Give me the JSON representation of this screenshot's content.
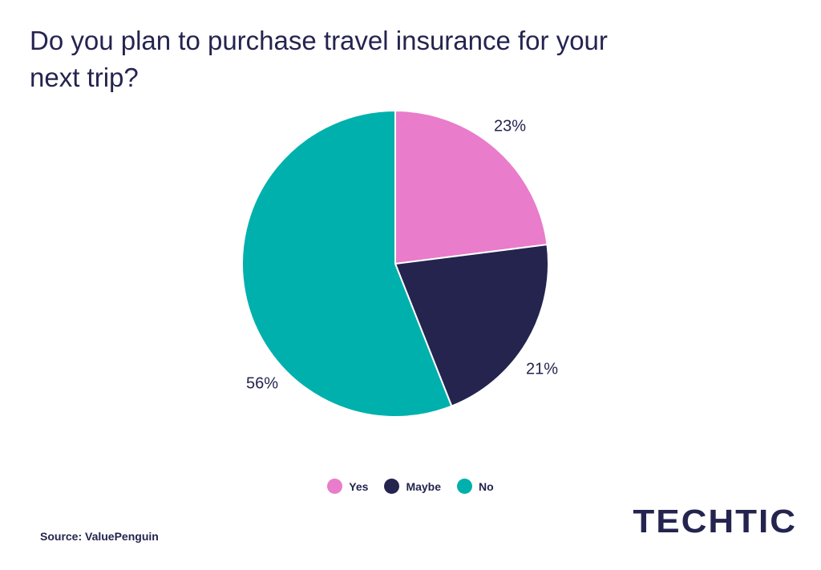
{
  "colors": {
    "yes": "#e97ccb",
    "maybe": "#24244f",
    "no": "#00b0ac"
  },
  "chart_data": {
    "type": "pie",
    "title": "Do you plan to purchase travel insurance for your next trip?",
    "categories": [
      "Yes",
      "Maybe",
      "No"
    ],
    "values": [
      23,
      21,
      56
    ],
    "labels": [
      "23%",
      "21%",
      "56%"
    ],
    "legend_placement": "bottom-center"
  },
  "source": "Source: ValuePenguin",
  "logo_text": "TECHTIC"
}
